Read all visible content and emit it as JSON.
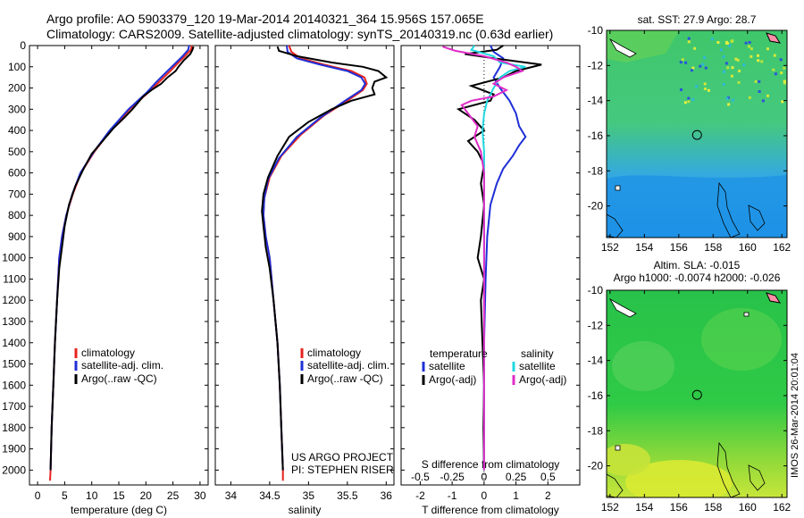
{
  "header": {
    "line1": "Argo profile: AO 5903379_120 19-Mar-2014 20140321_364 15.956S 157.065E",
    "line2": "Climatology: CARS2009. Satellite-adjusted climatology: synTS_20140319.nc (0.63d earlier)"
  },
  "credit": {
    "line1": "US ARGO PROJECT",
    "line2": "PI: STEPHEN RISER"
  },
  "stamp": "IMOS 26-Mar-2014 20:01:04",
  "colors": {
    "climatology": "#e8231e",
    "satellite": "#1f2fd6",
    "argo": "#000000",
    "sal_satellite": "#21d7e0",
    "sal_argo": "#e02cc7"
  },
  "depth_axis": {
    "ticks": [
      "0",
      "100",
      "200",
      "300",
      "400",
      "500",
      "600",
      "700",
      "800",
      "900",
      "1000",
      "1100",
      "1200",
      "1300",
      "1400",
      "1500",
      "1600",
      "1700",
      "1800",
      "1900",
      "2000"
    ],
    "range": [
      0,
      2070
    ]
  },
  "chart_data": [
    {
      "type": "line",
      "id": "temperature",
      "xlabel": "temperature (deg C)",
      "xlim": [
        -1.5,
        31.5
      ],
      "xticks": [
        0,
        5,
        10,
        15,
        20,
        25,
        30
      ],
      "xtick_labels": [
        "0",
        "5",
        "10",
        "15",
        "20",
        "25",
        "30"
      ],
      "ylim": [
        0,
        2070
      ],
      "legend": [
        "climatology",
        "satellite-adj. clim.",
        "Argo(..raw -QC)"
      ],
      "series": [
        {
          "name": "climatology",
          "color": "#e8231e",
          "points": [
            [
              28.5,
              0
            ],
            [
              28.3,
              20
            ],
            [
              27.2,
              50
            ],
            [
              26.0,
              80
            ],
            [
              24.5,
              120
            ],
            [
              22.5,
              170
            ],
            [
              20.5,
              220
            ],
            [
              17.0,
              300
            ],
            [
              13.5,
              400
            ],
            [
              10.5,
              500
            ],
            [
              8.0,
              600
            ],
            [
              6.5,
              700
            ],
            [
              5.3,
              800
            ],
            [
              4.5,
              900
            ],
            [
              4.0,
              1000
            ],
            [
              3.6,
              1200
            ],
            [
              3.2,
              1400
            ],
            [
              2.9,
              1600
            ],
            [
              2.6,
              1800
            ],
            [
              2.4,
              2000
            ],
            [
              2.3,
              2050
            ]
          ]
        },
        {
          "name": "satellite-adj. clim.",
          "color": "#1f2fd6",
          "points": [
            [
              28.0,
              0
            ],
            [
              27.8,
              20
            ],
            [
              26.8,
              50
            ],
            [
              25.6,
              80
            ],
            [
              24.0,
              120
            ],
            [
              22.0,
              170
            ],
            [
              20.2,
              220
            ],
            [
              16.8,
              300
            ],
            [
              13.3,
              400
            ],
            [
              10.4,
              500
            ],
            [
              7.9,
              600
            ],
            [
              6.4,
              700
            ],
            [
              5.3,
              800
            ],
            [
              4.5,
              900
            ],
            [
              4.0,
              1000
            ],
            [
              3.6,
              1200
            ],
            [
              3.2,
              1400
            ],
            [
              2.9,
              1600
            ],
            [
              2.6,
              1800
            ],
            [
              2.4,
              2000
            ]
          ]
        },
        {
          "name": "Argo(..raw -QC)",
          "color": "#000000",
          "points": [
            [
              28.8,
              5
            ],
            [
              28.6,
              20
            ],
            [
              28.2,
              40
            ],
            [
              27.0,
              70
            ],
            [
              26.0,
              100
            ],
            [
              25.5,
              120
            ],
            [
              24.0,
              150
            ],
            [
              22.8,
              180
            ],
            [
              21.0,
              210
            ],
            [
              19.5,
              240
            ],
            [
              18.5,
              270
            ],
            [
              17.5,
              300
            ],
            [
              16.0,
              340
            ],
            [
              14.0,
              390
            ],
            [
              12.0,
              450
            ],
            [
              10.0,
              510
            ],
            [
              8.5,
              580
            ],
            [
              7.0,
              660
            ],
            [
              5.8,
              750
            ],
            [
              5.0,
              850
            ],
            [
              4.5,
              950
            ],
            [
              4.0,
              1050
            ],
            [
              3.6,
              1200
            ],
            [
              3.2,
              1400
            ],
            [
              2.9,
              1600
            ],
            [
              2.6,
              1800
            ],
            [
              2.4,
              2000
            ]
          ]
        }
      ]
    },
    {
      "type": "line",
      "id": "salinity",
      "xlabel": "salinity",
      "xlim": [
        33.8,
        36.1
      ],
      "xticks": [
        34,
        34.5,
        35,
        35.5,
        36
      ],
      "xtick_labels": [
        "34",
        "34.5",
        "35",
        "35.5",
        "36"
      ],
      "ylim": [
        0,
        2070
      ],
      "legend": [
        "climatology",
        "satellite-adj. clim.",
        "Argo(..raw -QC)"
      ],
      "series": [
        {
          "name": "climatology",
          "color": "#e8231e",
          "points": [
            [
              34.75,
              0
            ],
            [
              34.78,
              30
            ],
            [
              34.9,
              60
            ],
            [
              35.2,
              90
            ],
            [
              35.55,
              120
            ],
            [
              35.72,
              150
            ],
            [
              35.75,
              180
            ],
            [
              35.7,
              210
            ],
            [
              35.5,
              260
            ],
            [
              35.2,
              330
            ],
            [
              34.9,
              420
            ],
            [
              34.65,
              520
            ],
            [
              34.5,
              620
            ],
            [
              34.43,
              720
            ],
            [
              34.42,
              800
            ],
            [
              34.45,
              900
            ],
            [
              34.5,
              1000
            ],
            [
              34.55,
              1200
            ],
            [
              34.6,
              1400
            ],
            [
              34.63,
              1600
            ],
            [
              34.65,
              1800
            ],
            [
              34.67,
              2000
            ],
            [
              34.67,
              2050
            ]
          ]
        },
        {
          "name": "satellite-adj. clim.",
          "color": "#1f2fd6",
          "points": [
            [
              34.72,
              0
            ],
            [
              34.73,
              30
            ],
            [
              34.85,
              60
            ],
            [
              35.15,
              90
            ],
            [
              35.5,
              120
            ],
            [
              35.68,
              150
            ],
            [
              35.73,
              180
            ],
            [
              35.68,
              210
            ],
            [
              35.47,
              260
            ],
            [
              35.15,
              340
            ],
            [
              34.85,
              430
            ],
            [
              34.62,
              530
            ],
            [
              34.48,
              630
            ],
            [
              34.43,
              720
            ],
            [
              34.42,
              800
            ],
            [
              34.45,
              900
            ],
            [
              34.5,
              1000
            ],
            [
              34.55,
              1200
            ],
            [
              34.6,
              1400
            ],
            [
              34.63,
              1600
            ],
            [
              34.65,
              1800
            ],
            [
              34.67,
              2000
            ]
          ]
        },
        {
          "name": "Argo(..raw -QC)",
          "color": "#000000",
          "points": [
            [
              34.6,
              5
            ],
            [
              34.62,
              25
            ],
            [
              34.85,
              50
            ],
            [
              35.3,
              80
            ],
            [
              35.7,
              100
            ],
            [
              35.9,
              120
            ],
            [
              36.0,
              150
            ],
            [
              35.85,
              170
            ],
            [
              35.82,
              200
            ],
            [
              35.85,
              230
            ],
            [
              35.55,
              260
            ],
            [
              35.3,
              300
            ],
            [
              35.0,
              360
            ],
            [
              34.75,
              430
            ],
            [
              34.6,
              520
            ],
            [
              34.48,
              620
            ],
            [
              34.42,
              700
            ],
            [
              34.4,
              780
            ],
            [
              34.42,
              850
            ],
            [
              34.45,
              950
            ],
            [
              34.5,
              1050
            ],
            [
              34.55,
              1200
            ],
            [
              34.6,
              1400
            ],
            [
              34.63,
              1600
            ],
            [
              34.65,
              1800
            ],
            [
              34.67,
              2000
            ]
          ]
        }
      ]
    },
    {
      "type": "line",
      "id": "difference",
      "xlabel": "T difference from climatology",
      "xlabel_top": "S difference from climatology",
      "xlim": [
        -2.6,
        3.0
      ],
      "xticks": [
        -2,
        -1,
        0,
        1,
        2
      ],
      "xtick_labels": [
        "-2",
        "-1",
        "0",
        "1",
        "2"
      ],
      "s_xticks": [
        -0.5,
        -0.25,
        0,
        0.25,
        0.5
      ],
      "s_xtick_labels": [
        "-0.5",
        "-0.25",
        "0",
        "0.25",
        "0.5"
      ],
      "s_scale": 4,
      "ylim": [
        0,
        2070
      ],
      "legend_headers": [
        "temperature",
        "salinity"
      ],
      "legend": [
        "satellite",
        "Argo(-adj)",
        "satellite",
        "Argo(-adj)"
      ],
      "series": [
        {
          "name": "temperature satellite",
          "color": "#1f2fd6",
          "points": [
            [
              0.2,
              0
            ],
            [
              0.3,
              30
            ],
            [
              0.6,
              60
            ],
            [
              0.5,
              100
            ],
            [
              0.3,
              150
            ],
            [
              0.5,
              200
            ],
            [
              0.8,
              260
            ],
            [
              1.0,
              320
            ],
            [
              1.1,
              380
            ],
            [
              1.3,
              430
            ],
            [
              1.1,
              470
            ],
            [
              0.9,
              520
            ],
            [
              0.6,
              580
            ],
            [
              0.4,
              650
            ],
            [
              0.2,
              750
            ],
            [
              0.1,
              900
            ],
            [
              0.05,
              1100
            ],
            [
              0.0,
              1400
            ],
            [
              0.0,
              2000
            ]
          ]
        },
        {
          "name": "temperature Argo(-adj)",
          "color": "#000000",
          "points": [
            [
              0.6,
              0
            ],
            [
              0.4,
              20
            ],
            [
              -0.6,
              40
            ],
            [
              0.3,
              60
            ],
            [
              1.8,
              90
            ],
            [
              1.0,
              120
            ],
            [
              0.6,
              150
            ],
            [
              -0.4,
              190
            ],
            [
              0.3,
              230
            ],
            [
              0.2,
              260
            ],
            [
              -0.8,
              300
            ],
            [
              -0.3,
              350
            ],
            [
              0.0,
              400
            ],
            [
              -0.5,
              450
            ],
            [
              -0.2,
              500
            ],
            [
              0.0,
              560
            ],
            [
              -0.1,
              650
            ],
            [
              0.0,
              750
            ],
            [
              -0.1,
              900
            ],
            [
              -0.2,
              1000
            ],
            [
              0.0,
              1100
            ],
            [
              -0.1,
              1200
            ],
            [
              -0.05,
              1400
            ],
            [
              0.0,
              1600
            ],
            [
              -0.02,
              1800
            ],
            [
              0.0,
              2000
            ]
          ]
        },
        {
          "name": "salinity satellite",
          "color": "#21d7e0",
          "points": [
            [
              -0.3,
              0
            ],
            [
              -0.4,
              20
            ],
            [
              0.3,
              50
            ],
            [
              0.5,
              80
            ],
            [
              1.3,
              100
            ],
            [
              0.8,
              120
            ],
            [
              0.5,
              150
            ],
            [
              0.3,
              200
            ],
            [
              0.1,
              260
            ],
            [
              0.0,
              320
            ],
            [
              -0.05,
              400
            ],
            [
              0.0,
              500
            ],
            [
              0.0,
              700
            ],
            [
              0.0,
              1000
            ],
            [
              0.0,
              2000
            ]
          ]
        },
        {
          "name": "salinity Argo(-adj)",
          "color": "#e02cc7",
          "points": [
            [
              -1.3,
              5
            ],
            [
              -0.9,
              25
            ],
            [
              0.0,
              50
            ],
            [
              0.7,
              80
            ],
            [
              1.0,
              100
            ],
            [
              1.2,
              120
            ],
            [
              0.6,
              150
            ],
            [
              0.3,
              180
            ],
            [
              0.7,
              210
            ],
            [
              0.3,
              240
            ],
            [
              -0.4,
              260
            ],
            [
              -0.7,
              280
            ],
            [
              -0.5,
              320
            ],
            [
              -0.2,
              380
            ],
            [
              -0.3,
              430
            ],
            [
              -0.1,
              500
            ],
            [
              0.0,
              600
            ],
            [
              0.0,
              800
            ],
            [
              0.0,
              2000
            ]
          ]
        }
      ]
    },
    {
      "type": "heatmap",
      "id": "sst-map",
      "title": "sat. SST: 27.9 Argo: 28.7",
      "xlim": [
        151.8,
        162.3
      ],
      "ylim": [
        -21.8,
        -10
      ],
      "xticks": [
        152,
        154,
        156,
        158,
        160,
        162
      ],
      "yticks": [
        -10,
        -12,
        -14,
        -16,
        -18,
        -20
      ],
      "float_lon": 157.065,
      "float_lat": -15.956
    },
    {
      "type": "heatmap",
      "id": "sla-map",
      "title": "Altim. SLA: -0.015",
      "subtitle": "Argo h1000: -0.0074 h2000: -0.026",
      "xlim": [
        151.8,
        162.3
      ],
      "ylim": [
        -21.8,
        -10
      ],
      "xticks": [
        152,
        154,
        156,
        158,
        160,
        162
      ],
      "yticks": [
        -10,
        -12,
        -14,
        -16,
        -18,
        -20
      ],
      "float_lon": 157.065,
      "float_lat": -15.956
    }
  ]
}
